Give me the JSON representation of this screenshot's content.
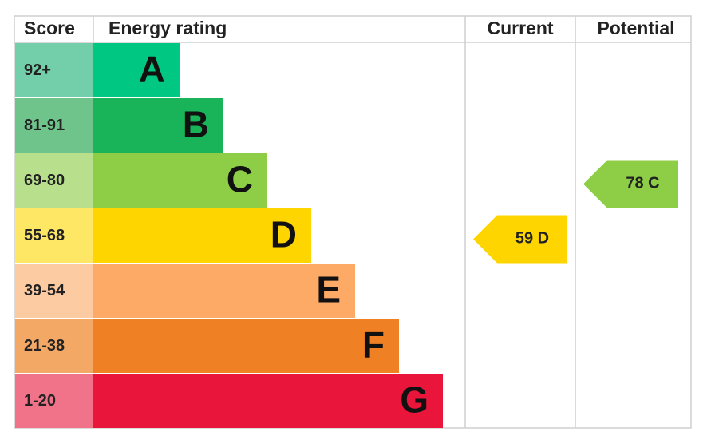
{
  "header": {
    "score": "Score",
    "energy_rating": "Energy rating",
    "current": "Current",
    "potential": "Potential"
  },
  "bands": [
    {
      "range": "92+",
      "letter": "A",
      "color": "#00c781",
      "light": "#72cfa9"
    },
    {
      "range": "81-91",
      "letter": "B",
      "color": "#19b459",
      "light": "#6fc48c"
    },
    {
      "range": "69-80",
      "letter": "C",
      "color": "#8dce46",
      "light": "#b8e08c"
    },
    {
      "range": "55-68",
      "letter": "D",
      "color": "#ffd500",
      "light": "#ffe766"
    },
    {
      "range": "39-54",
      "letter": "E",
      "color": "#fcaa65",
      "light": "#fdcba1"
    },
    {
      "range": "21-38",
      "letter": "F",
      "color": "#ef8023",
      "light": "#f4a866"
    },
    {
      "range": "1-20",
      "letter": "G",
      "color": "#e9153b",
      "light": "#f07389"
    }
  ],
  "current": {
    "score": 59,
    "rating": "D"
  },
  "potential": {
    "score": 78,
    "rating": "C"
  }
}
